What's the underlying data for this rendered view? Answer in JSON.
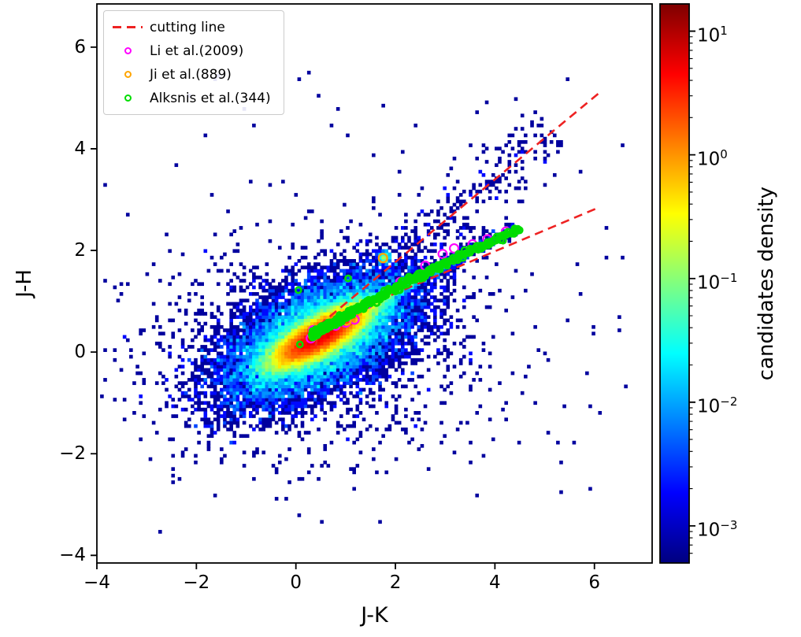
{
  "figure": {
    "background": "#ffffff"
  },
  "chart_data": {
    "type": "heatmap",
    "title": "",
    "xlabel": "J-K",
    "ylabel": "J-H",
    "xlim": [
      -4,
      7.16
    ],
    "ylim": [
      -4.15,
      6.85
    ],
    "xticks": [
      -4,
      -2,
      0,
      2,
      4,
      6
    ],
    "xtick_labels": [
      "−4",
      "−2",
      "0",
      "2",
      "4",
      "6"
    ],
    "yticks": [
      -4,
      -2,
      0,
      2,
      4,
      6
    ],
    "ytick_labels": [
      "−4",
      "−2",
      "0",
      "2",
      "4",
      "6"
    ],
    "grid": false,
    "colorbar": {
      "label": "candidates density",
      "scale": "log",
      "base": "10",
      "tick_exponents": [
        1,
        0,
        -1,
        -2,
        -3
      ],
      "tick_labels": [
        "1",
        "0",
        "−1",
        "−2",
        "−3"
      ],
      "log_min": -3.3,
      "log_max": 1.22,
      "colormap": "jet"
    },
    "density_model": {
      "seed": 20090889,
      "bin_size": 0.065,
      "populations": {
        "core": {
          "center": [
            0.48,
            0.32
          ],
          "slope": 0.55,
          "sigma_major": 0.5,
          "sigma_minor": 0.16,
          "n": 40000
        },
        "halo": {
          "center": [
            0.45,
            0.3
          ],
          "slope": 0.5,
          "sigma_major": 1.05,
          "sigma_minor": 0.48,
          "n": 12000
        },
        "wide_halo": {
          "center": [
            0.4,
            0.1
          ],
          "sigma_x": 1.7,
          "sigma_y": 1.05,
          "n": 1400
        },
        "branch": {
          "start": [
            0.55,
            0.45
          ],
          "end": [
            4.4,
            2.45
          ],
          "decay": 3.0,
          "perp_sigma": 0.06,
          "n": 2600
        },
        "upper_wedge": {
          "start": [
            1.4,
            1.25
          ],
          "end": [
            5.1,
            4.4
          ],
          "perp_sigma": 0.3,
          "n": 260
        },
        "clumps": [
          {
            "center": [
              1.78,
              1.86
            ],
            "sigma": 0.05,
            "n": 160
          }
        ],
        "uniform_outliers": {
          "n": 130,
          "box": [
            -3.9,
            -2.9,
            6.7,
            5.5
          ]
        },
        "explicit_outliers": [
          [
            -3.85,
            0.05
          ],
          [
            -2.5,
            -2.55
          ],
          [
            -2.05,
            -2.2
          ],
          [
            -1.5,
            -1.9
          ],
          [
            6.55,
            4.05
          ],
          [
            5.45,
            5.4
          ],
          [
            4.75,
            4.55
          ],
          [
            4.45,
            4.95
          ],
          [
            5.0,
            3.3
          ],
          [
            0.3,
            2.8
          ],
          [
            -0.5,
            2.2
          ],
          [
            1.0,
            2.9
          ],
          [
            -1.3,
            1.75
          ],
          [
            2.2,
            -1.5
          ],
          [
            0.5,
            -3.35
          ],
          [
            -0.2,
            -2.9
          ],
          [
            3.6,
            0.3
          ],
          [
            4.6,
            1.2
          ]
        ]
      }
    },
    "cutting_lines": {
      "label": "cutting line",
      "color": "#ee2222",
      "dash": [
        11,
        7
      ],
      "width": 2.6,
      "segments": [
        [
          [
            0.4,
            0.12
          ],
          [
            0.46,
            0.52
          ],
          [
            6.1,
            2.85
          ]
        ],
        [
          [
            0.46,
            0.52
          ],
          [
            6.12,
            5.12
          ]
        ]
      ]
    },
    "series": [
      {
        "name": "Li et al.(2009)",
        "color": "#ff00ff",
        "marker": "open-circle",
        "points": [
          [
            0.3,
            0.27
          ],
          [
            0.35,
            0.43
          ],
          [
            0.55,
            0.45
          ],
          [
            0.8,
            0.52
          ],
          [
            1.0,
            0.58
          ],
          [
            1.18,
            0.64
          ],
          [
            1.45,
            0.95
          ],
          [
            2.1,
            1.38
          ],
          [
            2.6,
            1.7
          ],
          [
            2.95,
            1.93
          ],
          [
            3.18,
            2.04
          ],
          [
            3.55,
            2.12
          ],
          [
            3.85,
            2.22
          ],
          [
            4.22,
            2.37
          ]
        ]
      },
      {
        "name": "Ji et al.(889)",
        "color": "#ffa500",
        "marker": "open-circle",
        "points": [
          [
            1.75,
            1.85
          ],
          [
            1.02,
            0.62
          ],
          [
            0.35,
            0.32
          ]
        ]
      },
      {
        "name": "Alksnis et al.(344)",
        "color": "#00dd00",
        "marker": "open-circle",
        "track": {
          "start": [
            0.35,
            0.35
          ],
          "dx_total": 4.15,
          "slope": 0.585,
          "curve": -0.0205,
          "n": 330,
          "power": 1.9,
          "jitter": 0.035
        },
        "points": [
          [
            0.05,
            1.22
          ],
          [
            1.05,
            1.45
          ],
          [
            0.08,
            0.15
          ]
        ]
      }
    ],
    "legend": {
      "entries": [
        {
          "label": "cutting line",
          "glyph": "dashed-line",
          "color": "#ee2222"
        },
        {
          "label": "Li et al.(2009)",
          "glyph": "open-circle",
          "color": "#ff00ff"
        },
        {
          "label": "Ji et al.(889)",
          "glyph": "open-circle",
          "color": "#ffa500"
        },
        {
          "label": "Alksnis et al.(344)",
          "glyph": "open-circle",
          "color": "#00dd00"
        }
      ]
    }
  }
}
